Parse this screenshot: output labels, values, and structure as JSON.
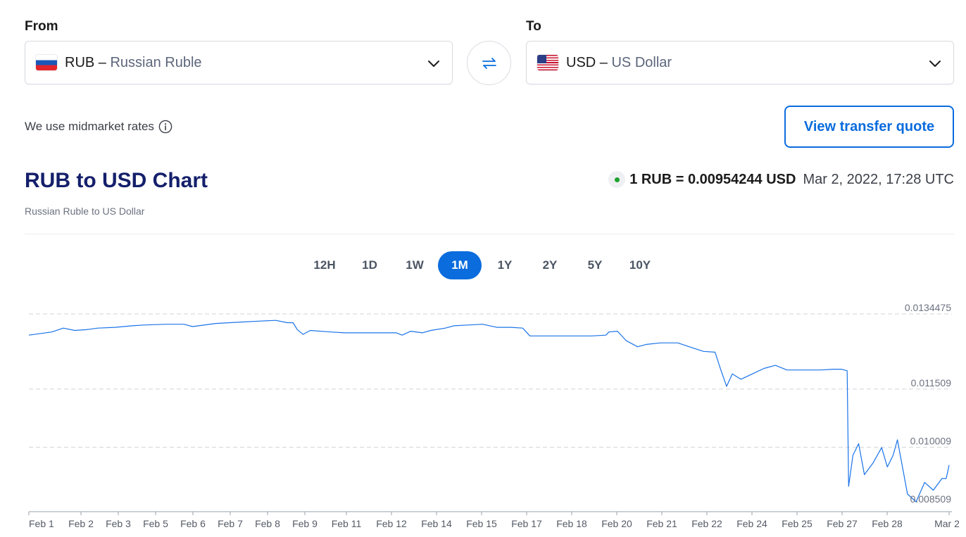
{
  "converter": {
    "from_label": "From",
    "to_label": "To",
    "from": {
      "code": "RUB",
      "separator": " – ",
      "name": "Russian Ruble",
      "flag": "flag-ru"
    },
    "to": {
      "code": "USD",
      "separator": " – ",
      "name": "US Dollar",
      "flag": "flag-us"
    },
    "swap_icon": "swap-arrows-icon"
  },
  "midmarket_text": "We use midmarket rates",
  "quote_button": "View transfer quote",
  "chart_header": {
    "title": "RUB to USD Chart",
    "subtitle": "Russian Ruble to US Dollar",
    "rate": "1 RUB = 0.00954244 USD",
    "timestamp": "Mar 2, 2022, 17:28 UTC"
  },
  "range_tabs": [
    {
      "label": "12H",
      "active": false
    },
    {
      "label": "1D",
      "active": false
    },
    {
      "label": "1W",
      "active": false
    },
    {
      "label": "1M",
      "active": true
    },
    {
      "label": "1Y",
      "active": false
    },
    {
      "label": "2Y",
      "active": false
    },
    {
      "label": "5Y",
      "active": false
    },
    {
      "label": "10Y",
      "active": false
    }
  ],
  "colors": {
    "accent": "#0a6cdd",
    "line": "#1a73e8",
    "title": "#141f6b",
    "live": "#1ea22e"
  },
  "chart_data": {
    "type": "line",
    "title": "RUB to USD Chart",
    "xlabel": "",
    "ylabel": "",
    "y_ticks": [
      0.0134475,
      0.011509,
      0.010009,
      0.008509
    ],
    "y_tick_labels": [
      "0.0134475",
      "0.011509",
      "0.010009",
      "0.008509"
    ],
    "ylim": [
      0.008509,
      0.0134475
    ],
    "grid": true,
    "x_tick_labels": [
      "Feb 1",
      "Feb 2",
      "Feb 3",
      "Feb 5",
      "Feb 6",
      "Feb 7",
      "Feb 8",
      "Feb 9",
      "Feb 11",
      "Feb 12",
      "Feb 14",
      "Feb 15",
      "Feb 17",
      "Feb 18",
      "Feb 20",
      "Feb 21",
      "Feb 22",
      "Feb 24",
      "Feb 25",
      "Feb 27",
      "Feb 28",
      "Mar 2"
    ],
    "x_tick_days": [
      1,
      2,
      3,
      5,
      6,
      7,
      8,
      9,
      11,
      12,
      14,
      15,
      17,
      18,
      20,
      21,
      22,
      24,
      25,
      27,
      28,
      30
    ],
    "xlim_days": [
      1,
      30
    ],
    "series": [
      {
        "points": [
          [
            1.0,
            0.0129
          ],
          [
            1.8,
            0.01298
          ],
          [
            2.2,
            0.01308
          ],
          [
            2.6,
            0.01302
          ],
          [
            3.0,
            0.01304
          ],
          [
            3.4,
            0.01308
          ],
          [
            4.0,
            0.0131
          ],
          [
            4.6,
            0.01314
          ],
          [
            5.0,
            0.01316
          ],
          [
            5.8,
            0.01318
          ],
          [
            6.4,
            0.01318
          ],
          [
            6.7,
            0.01312
          ],
          [
            7.0,
            0.01315
          ],
          [
            7.5,
            0.0132
          ],
          [
            8.0,
            0.01322
          ],
          [
            8.5,
            0.01324
          ],
          [
            9.0,
            0.01326
          ],
          [
            9.6,
            0.01328
          ],
          [
            10.0,
            0.01322
          ],
          [
            10.2,
            0.01322
          ],
          [
            10.35,
            0.01304
          ],
          [
            10.55,
            0.01292
          ],
          [
            10.8,
            0.01302
          ],
          [
            11.5,
            0.01298
          ],
          [
            12.0,
            0.01296
          ],
          [
            13.0,
            0.01296
          ],
          [
            13.8,
            0.01296
          ],
          [
            14.0,
            0.0129
          ],
          [
            14.3,
            0.013
          ],
          [
            14.7,
            0.01296
          ],
          [
            15.0,
            0.01302
          ],
          [
            15.5,
            0.01308
          ],
          [
            15.8,
            0.01314
          ],
          [
            16.3,
            0.01316
          ],
          [
            16.8,
            0.01318
          ],
          [
            17.3,
            0.0131
          ],
          [
            17.8,
            0.0131
          ],
          [
            18.2,
            0.01308
          ],
          [
            18.45,
            0.01288
          ],
          [
            19.2,
            0.01288
          ],
          [
            20.0,
            0.01288
          ],
          [
            20.6,
            0.01288
          ],
          [
            21.1,
            0.0129
          ],
          [
            21.2,
            0.01298
          ],
          [
            21.5,
            0.013
          ],
          [
            21.8,
            0.01276
          ],
          [
            22.2,
            0.0126
          ],
          [
            22.5,
            0.01266
          ],
          [
            23.0,
            0.0127
          ],
          [
            23.6,
            0.0127
          ],
          [
            24.0,
            0.0126
          ],
          [
            24.5,
            0.01248
          ],
          [
            24.9,
            0.01246
          ],
          [
            25.1,
            0.012
          ],
          [
            25.3,
            0.01158
          ],
          [
            25.5,
            0.0119
          ],
          [
            25.8,
            0.01176
          ],
          [
            26.2,
            0.0119
          ],
          [
            26.6,
            0.01204
          ],
          [
            27.0,
            0.01212
          ],
          [
            27.4,
            0.012
          ],
          [
            27.8,
            0.012
          ],
          [
            28.2,
            0.012
          ],
          [
            28.6,
            0.012
          ],
          [
            29.0,
            0.01202
          ],
          [
            29.3,
            0.01202
          ],
          [
            29.5,
            0.01198
          ],
          [
            29.55,
            0.009
          ],
          [
            29.7,
            0.0098
          ],
          [
            29.9,
            0.0101
          ],
          [
            30.1,
            0.0093
          ],
          [
            30.4,
            0.0096
          ],
          [
            30.7,
            0.01
          ],
          [
            30.9,
            0.0095
          ],
          [
            31.1,
            0.0098
          ],
          [
            31.25,
            0.0102
          ],
          [
            31.4,
            0.0096
          ],
          [
            31.6,
            0.0088
          ],
          [
            31.9,
            0.0086
          ],
          [
            32.2,
            0.0091
          ],
          [
            32.5,
            0.0089
          ],
          [
            32.8,
            0.0092
          ],
          [
            32.95,
            0.0092
          ],
          [
            33.05,
            0.00955
          ]
        ]
      }
    ]
  }
}
